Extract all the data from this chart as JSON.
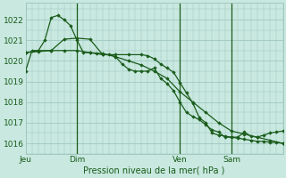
{
  "bg_color": "#c8e8e0",
  "grid_color": "#a0c8c0",
  "line_color": "#1a5c1a",
  "title": "Pression niveau de la mer( hPa )",
  "ylabel_values": [
    1016,
    1017,
    1018,
    1019,
    1020,
    1021,
    1022
  ],
  "ylim": [
    1015.5,
    1022.8
  ],
  "x_ticks_labels": [
    "Jeu",
    "Dim",
    "Ven",
    "Sam"
  ],
  "x_ticks_pos": [
    0,
    16,
    48,
    64
  ],
  "vlines": [
    16,
    48,
    64
  ],
  "xlim": [
    0,
    80
  ],
  "series": [
    {
      "x": [
        0,
        2,
        4,
        6,
        8,
        10,
        12,
        14,
        16,
        18,
        20,
        22,
        24,
        26,
        28,
        30,
        32,
        34,
        36,
        38,
        40,
        42,
        44,
        46,
        48,
        50,
        52,
        54,
        56,
        58,
        60,
        62,
        64,
        66,
        68,
        70,
        72,
        74,
        76,
        78,
        80
      ],
      "y": [
        1019.5,
        1020.5,
        1020.5,
        1021.0,
        1022.1,
        1022.2,
        1022.0,
        1021.7,
        1021.0,
        1020.4,
        1020.4,
        1020.35,
        1020.3,
        1020.3,
        1020.2,
        1019.85,
        1019.6,
        1019.5,
        1019.5,
        1019.5,
        1019.65,
        1019.15,
        1018.9,
        1018.55,
        1018.0,
        1017.5,
        1017.3,
        1017.15,
        1016.9,
        1016.65,
        1016.55,
        1016.3,
        1016.3,
        1016.25,
        1016.2,
        1016.15,
        1016.1,
        1016.1,
        1016.05,
        1016.05,
        1016.0
      ]
    },
    {
      "x": [
        0,
        4,
        8,
        12,
        16,
        20,
        24,
        28,
        32,
        36,
        40,
        44,
        48,
        52,
        56,
        60,
        64,
        68,
        72,
        76,
        80
      ],
      "y": [
        1020.4,
        1020.5,
        1020.5,
        1020.5,
        1020.5,
        1020.4,
        1020.35,
        1020.2,
        1020.0,
        1019.8,
        1019.5,
        1019.15,
        1018.5,
        1018.0,
        1017.5,
        1017.0,
        1016.6,
        1016.45,
        1016.3,
        1016.15,
        1016.0
      ]
    },
    {
      "x": [
        0,
        4,
        8,
        12,
        16,
        20,
        24,
        28,
        32,
        36,
        38,
        40,
        42,
        44,
        46,
        48,
        50,
        52,
        54,
        56,
        58,
        60,
        62,
        64,
        66,
        68,
        70,
        72,
        74,
        76,
        78,
        80
      ],
      "y": [
        1020.4,
        1020.45,
        1020.5,
        1021.05,
        1021.1,
        1021.05,
        1020.3,
        1020.3,
        1020.3,
        1020.3,
        1020.25,
        1020.1,
        1019.85,
        1019.65,
        1019.45,
        1018.95,
        1018.45,
        1017.95,
        1017.25,
        1017.0,
        1016.5,
        1016.4,
        1016.35,
        1016.3,
        1016.3,
        1016.55,
        1016.35,
        1016.3,
        1016.4,
        1016.5,
        1016.55,
        1016.6
      ]
    }
  ]
}
